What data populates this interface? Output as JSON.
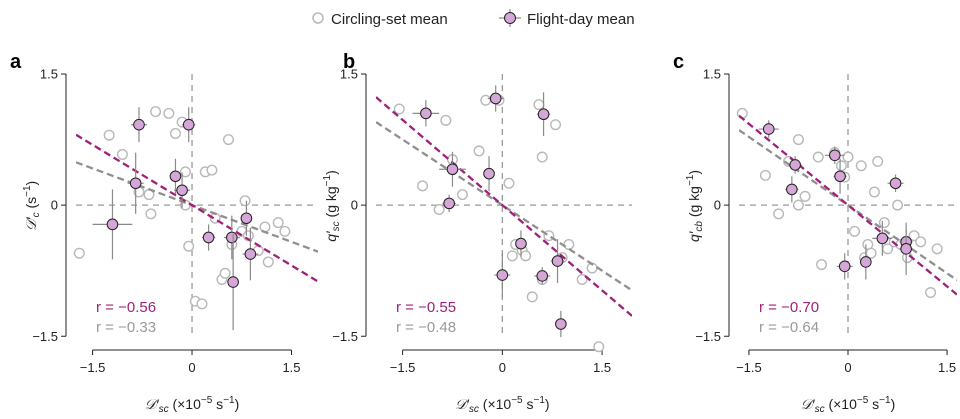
{
  "legend": {
    "circling_label": "Circling-set mean",
    "flight_label": "Flight-day mean"
  },
  "colors": {
    "purple": "#a0207a",
    "purple_fill": "#d7a6d8",
    "gray": "#9a9a9a",
    "gray_point": "#b8b8b8",
    "error_bar": "#8a8a8a",
    "zero_line": "#9a9a9a"
  },
  "chart_data": [
    {
      "type": "scatter",
      "panel": "a",
      "xlabel": "𝒟′sc (×10⁻⁵ s⁻¹)",
      "xlabel_parts": {
        "symbol": "𝒟′",
        "sub": "sc",
        "unit_pre": " (×10",
        "unit_sup": "−5",
        "unit_mid": " s",
        "unit_sup2": "−1",
        "unit_post": ")"
      },
      "ylabel": "𝒟′c (s⁻¹)",
      "ylabel_parts": {
        "symbol": "𝒟′",
        "sub": "c",
        "unit_pre": " (s",
        "unit_sup": "−1",
        "unit_post": ")"
      },
      "xlim": [
        -1.75,
        1.9
      ],
      "ylim": [
        -1.52,
        1.5
      ],
      "xticks": [
        "-1.5",
        "0",
        "1.5"
      ],
      "xtick_values": [
        -1.5,
        0,
        1.5
      ],
      "yticks": [
        "-1.5",
        "0",
        "1.5"
      ],
      "ytick_values": [
        -1.5,
        0,
        1.5
      ],
      "r_flight": "r = −0.56",
      "r_circling": "r = −0.33",
      "fit_flight": {
        "slope": -0.46,
        "intercept": 0.0
      },
      "fit_circling": {
        "slope": -0.28,
        "intercept": 0.0
      },
      "circling_points": [
        [
          -1.7,
          -0.55
        ],
        [
          -1.25,
          0.8
        ],
        [
          -1.05,
          0.58
        ],
        [
          -0.8,
          0.15
        ],
        [
          -0.65,
          0.12
        ],
        [
          -0.62,
          -0.1
        ],
        [
          -0.55,
          1.07
        ],
        [
          -0.35,
          1.05
        ],
        [
          -0.25,
          0.82
        ],
        [
          -0.15,
          0.95
        ],
        [
          -0.1,
          0.38
        ],
        [
          -0.05,
          -0.47
        ],
        [
          -0.1,
          0.0
        ],
        [
          0.05,
          -1.1
        ],
        [
          0.15,
          -1.13
        ],
        [
          0.2,
          0.38
        ],
        [
          0.3,
          0.4
        ],
        [
          0.35,
          -0.15
        ],
        [
          0.45,
          -0.85
        ],
        [
          0.5,
          -0.78
        ],
        [
          0.55,
          0.75
        ],
        [
          0.6,
          -0.45
        ],
        [
          0.75,
          -0.3
        ],
        [
          0.8,
          0.05
        ],
        [
          0.85,
          -0.35
        ],
        [
          1.0,
          -0.52
        ],
        [
          1.1,
          -0.25
        ],
        [
          1.15,
          -0.65
        ],
        [
          1.3,
          -0.2
        ],
        [
          1.4,
          -0.3
        ]
      ],
      "flight_points": [
        {
          "x": -1.2,
          "y": -0.22,
          "xerr": 0.3,
          "yerr": 0.4
        },
        {
          "x": -0.85,
          "y": 0.25,
          "xerr": 0.12,
          "yerr": 0.35
        },
        {
          "x": -0.8,
          "y": 0.92,
          "xerr": 0.12,
          "yerr": 0.2
        },
        {
          "x": -0.25,
          "y": 0.33,
          "xerr": 0.05,
          "yerr": 0.2
        },
        {
          "x": -0.15,
          "y": 0.17,
          "xerr": 0.12,
          "yerr": 0.2
        },
        {
          "x": -0.05,
          "y": 0.92,
          "xerr": 0.1,
          "yerr": 0.2
        },
        {
          "x": 0.25,
          "y": -0.37,
          "xerr": 0.1,
          "yerr": 0.15
        },
        {
          "x": 0.6,
          "y": -0.37,
          "xerr": 0.12,
          "yerr": 0.25
        },
        {
          "x": 0.62,
          "y": -0.88,
          "xerr": 0.05,
          "yerr": 0.55
        },
        {
          "x": 0.82,
          "y": -0.15,
          "xerr": 0.05,
          "yerr": 0.2
        },
        {
          "x": 0.88,
          "y": -0.56,
          "xerr": 0.12,
          "yerr": 0.3
        }
      ]
    },
    {
      "type": "scatter",
      "panel": "b",
      "xlabel": "𝒟′sc (×10⁻⁵ s⁻¹)",
      "xlabel_parts": {
        "symbol": "𝒟′",
        "sub": "sc",
        "unit_pre": " (×10",
        "unit_sup": "−5",
        "unit_mid": " s",
        "unit_sup2": "−1",
        "unit_post": ")"
      },
      "ylabel": "q′sc (g kg⁻¹)",
      "ylabel_parts": {
        "symbol": "q′",
        "sub": "sc",
        "unit_pre": " (g kg",
        "unit_sup": "−1",
        "unit_post": ")"
      },
      "xlim": [
        -1.9,
        1.95
      ],
      "ylim": [
        -1.52,
        1.5
      ],
      "xticks": [
        "-1.5",
        "0",
        "1.5"
      ],
      "xtick_values": [
        -1.5,
        0,
        1.5
      ],
      "yticks": [
        "-1.5",
        "0",
        "1.5"
      ],
      "ytick_values": [
        -1.5,
        0,
        1.5
      ],
      "r_flight": "r = −0.55",
      "r_circling": "r = −0.48",
      "fit_flight": {
        "slope": -0.65,
        "intercept": 0.0
      },
      "fit_circling": {
        "slope": -0.5,
        "intercept": 0.0
      },
      "circling_points": [
        [
          -1.55,
          1.1
        ],
        [
          -1.2,
          0.22
        ],
        [
          -0.95,
          -0.05
        ],
        [
          -0.85,
          0.97
        ],
        [
          -0.75,
          0.52
        ],
        [
          -0.6,
          0.12
        ],
        [
          -0.35,
          0.62
        ],
        [
          -0.25,
          1.2
        ],
        [
          -0.05,
          1.2
        ],
        [
          0.1,
          0.25
        ],
        [
          0.15,
          -0.58
        ],
        [
          0.2,
          -0.45
        ],
        [
          0.3,
          -0.52
        ],
        [
          0.35,
          -0.58
        ],
        [
          0.45,
          -1.05
        ],
        [
          0.55,
          1.15
        ],
        [
          0.6,
          0.55
        ],
        [
          0.6,
          -0.85
        ],
        [
          0.7,
          -0.35
        ],
        [
          0.8,
          0.92
        ],
        [
          0.9,
          -0.6
        ],
        [
          1.0,
          -0.45
        ],
        [
          1.2,
          -0.85
        ],
        [
          1.35,
          -0.72
        ],
        [
          1.45,
          -1.62
        ]
      ],
      "flight_points": [
        {
          "x": -1.15,
          "y": 1.05,
          "xerr": 0.2,
          "yerr": 0.15
        },
        {
          "x": -0.8,
          "y": 0.02,
          "xerr": 0.1,
          "yerr": 0.1
        },
        {
          "x": -0.75,
          "y": 0.41,
          "xerr": 0.2,
          "yerr": 0.2
        },
        {
          "x": -0.2,
          "y": 0.36,
          "xerr": 0.05,
          "yerr": 0.2
        },
        {
          "x": -0.1,
          "y": 1.22,
          "xerr": 0.12,
          "yerr": 0.15
        },
        {
          "x": 0.0,
          "y": -0.8,
          "xerr": 0.12,
          "yerr": 0.25
        },
        {
          "x": 0.28,
          "y": -0.44,
          "xerr": 0.05,
          "yerr": 0.15
        },
        {
          "x": 0.6,
          "y": -0.81,
          "xerr": 0.12,
          "yerr": 0.1
        },
        {
          "x": 0.62,
          "y": 1.04,
          "xerr": 0.1,
          "yerr": 0.25
        },
        {
          "x": 0.83,
          "y": -0.64,
          "xerr": 0.1,
          "yerr": 0.25
        },
        {
          "x": 0.88,
          "y": -1.36,
          "xerr": 0.05,
          "yerr": 0.15
        }
      ]
    },
    {
      "type": "scatter",
      "panel": "c",
      "xlabel": "𝒟′sc (×10⁻⁵ s⁻¹)",
      "xlabel_parts": {
        "symbol": "𝒟′",
        "sub": "sc",
        "unit_pre": " (×10",
        "unit_sup": "−5",
        "unit_mid": " s",
        "unit_sup2": "−1",
        "unit_post": ")"
      },
      "ylabel": "q′cb (g kg⁻¹)",
      "ylabel_parts": {
        "symbol": "q′",
        "sub": "cb",
        "unit_pre": " (g kg",
        "unit_sup": "−1",
        "unit_post": ")"
      },
      "xlim": [
        -1.65,
        1.65
      ],
      "ylim": [
        -1.52,
        1.5
      ],
      "xticks": [
        "-1.5",
        "0",
        "1.5"
      ],
      "xtick_values": [
        -1.5,
        0,
        1.5
      ],
      "yticks": [
        "-1.5",
        "0",
        "1.5"
      ],
      "ytick_values": [
        -1.5,
        0,
        1.5
      ],
      "r_flight": "r = −0.70",
      "r_circling": "r = −0.64",
      "fit_flight": {
        "slope": -0.62,
        "intercept": 0.0
      },
      "fit_circling": {
        "slope": -0.52,
        "intercept": 0.0
      },
      "circling_points": [
        [
          -1.6,
          1.05
        ],
        [
          -1.25,
          0.34
        ],
        [
          -1.05,
          -0.1
        ],
        [
          -0.9,
          0.5
        ],
        [
          -0.75,
          0.75
        ],
        [
          -0.75,
          0.0
        ],
        [
          -0.65,
          0.1
        ],
        [
          -0.45,
          0.55
        ],
        [
          -0.4,
          -0.68
        ],
        [
          -0.2,
          0.6
        ],
        [
          -0.1,
          0.45
        ],
        [
          -0.05,
          0.32
        ],
        [
          0.0,
          0.55
        ],
        [
          0.1,
          -0.3
        ],
        [
          0.2,
          0.45
        ],
        [
          0.25,
          -0.6
        ],
        [
          0.3,
          -0.45
        ],
        [
          0.35,
          -0.55
        ],
        [
          0.4,
          0.15
        ],
        [
          0.45,
          0.5
        ],
        [
          0.55,
          -0.2
        ],
        [
          0.6,
          -0.5
        ],
        [
          0.7,
          -0.42
        ],
        [
          0.75,
          0.0
        ],
        [
          0.8,
          -0.45
        ],
        [
          0.9,
          -0.6
        ],
        [
          1.0,
          -0.35
        ],
        [
          1.1,
          -0.42
        ],
        [
          1.25,
          -1.0
        ],
        [
          1.35,
          -0.5
        ]
      ],
      "flight_points": [
        {
          "x": -1.2,
          "y": 0.87,
          "xerr": 0.15,
          "yerr": 0.1
        },
        {
          "x": -0.85,
          "y": 0.18,
          "xerr": 0.1,
          "yerr": 0.15
        },
        {
          "x": -0.8,
          "y": 0.46,
          "xerr": 0.1,
          "yerr": 0.1
        },
        {
          "x": -0.2,
          "y": 0.57,
          "xerr": 0.15,
          "yerr": 0.1
        },
        {
          "x": -0.12,
          "y": 0.33,
          "xerr": 0.1,
          "yerr": 0.2
        },
        {
          "x": -0.05,
          "y": -0.7,
          "xerr": 0.12,
          "yerr": 0.15
        },
        {
          "x": 0.27,
          "y": -0.65,
          "xerr": 0.05,
          "yerr": 0.2
        },
        {
          "x": 0.52,
          "y": -0.38,
          "xerr": 0.15,
          "yerr": 0.2
        },
        {
          "x": 0.72,
          "y": 0.25,
          "xerr": 0.12,
          "yerr": 0.1
        },
        {
          "x": 0.88,
          "y": -0.42,
          "xerr": 0.1,
          "yerr": 0.15
        },
        {
          "x": 0.88,
          "y": -0.5,
          "xerr": 0.1,
          "yerr": 0.3
        }
      ]
    }
  ]
}
